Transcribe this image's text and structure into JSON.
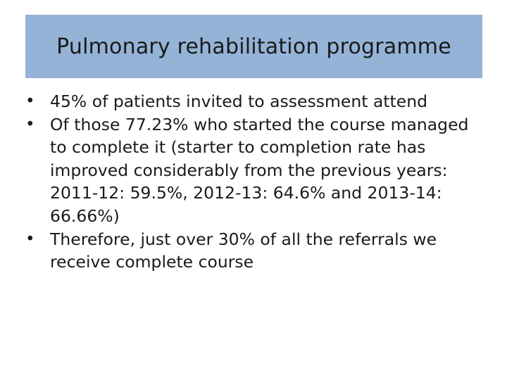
{
  "slide": {
    "title": "Pulmonary rehabilitation programme",
    "bullet_glyph": "•",
    "bullets": [
      "45% of patients invited to assessment attend",
      "Of those 77.23% who started the course managed to complete it (starter to completion rate has improved considerably from the previous years: 2011-12: 59.5%, 2012-13: 64.6% and 2013-14: 66.66%)",
      "Therefore, just over 30% of all the referrals we receive complete course"
    ]
  },
  "colors": {
    "title_background": "#95b3d7",
    "text": "#1a1a1a",
    "page_background": "#ffffff"
  }
}
